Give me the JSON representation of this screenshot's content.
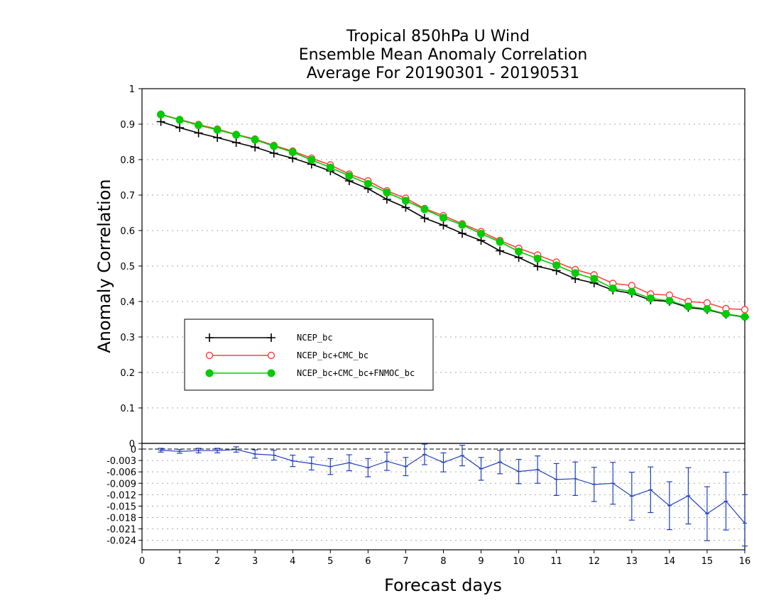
{
  "chart_data": {
    "title_lines": [
      "Tropical 850hPa U Wind",
      "Ensemble Mean Anomaly Correlation",
      "Average For 20190301 - 20190531"
    ],
    "xlabel": "Forecast days",
    "ylabel": "Anomaly Correlation",
    "main": {
      "type": "line",
      "xlim": [
        0,
        16
      ],
      "ylim": [
        0,
        1
      ],
      "x_ticks": [
        "0",
        "1",
        "2",
        "3",
        "4",
        "5",
        "6",
        "7",
        "8",
        "9",
        "10",
        "11",
        "12",
        "13",
        "14",
        "15",
        "16"
      ],
      "y_ticks": [
        "0",
        "0.1",
        "0.2",
        "0.3",
        "0.4",
        "0.5",
        "0.6",
        "0.7",
        "0.8",
        "0.9",
        "1"
      ],
      "grid": "dotted horizontal",
      "x": [
        0.5,
        1,
        1.5,
        2,
        2.5,
        3,
        3.5,
        4,
        4.5,
        5,
        5.5,
        6,
        6.5,
        7,
        7.5,
        8,
        8.5,
        9,
        9.5,
        10,
        10.5,
        11,
        11.5,
        12,
        12.5,
        13,
        13.5,
        14,
        14.5,
        15,
        15.5,
        16
      ],
      "series": [
        {
          "name": "NCEP_bc",
          "color": "#000000",
          "marker": "plus",
          "values": [
            0.907,
            0.89,
            0.875,
            0.862,
            0.848,
            0.835,
            0.818,
            0.804,
            0.787,
            0.768,
            0.74,
            0.718,
            0.688,
            0.665,
            0.635,
            0.615,
            0.592,
            0.572,
            0.543,
            0.524,
            0.499,
            0.487,
            0.464,
            0.452,
            0.432,
            0.423,
            0.404,
            0.4,
            0.383,
            0.377,
            0.364,
            0.356
          ]
        },
        {
          "name": "NCEP_bc+CMC_bc",
          "color": "#ff4040",
          "marker": "open-circle",
          "values": [
            0.928,
            0.913,
            0.899,
            0.886,
            0.871,
            0.858,
            0.84,
            0.824,
            0.804,
            0.785,
            0.759,
            0.74,
            0.712,
            0.691,
            0.662,
            0.642,
            0.619,
            0.597,
            0.572,
            0.55,
            0.531,
            0.511,
            0.49,
            0.475,
            0.451,
            0.445,
            0.421,
            0.418,
            0.4,
            0.396,
            0.38,
            0.377
          ]
        },
        {
          "name": "NCEP_bc+CMC_bc+FNMOC_bc",
          "color": "#00cc00",
          "marker": "filled-circle",
          "values": [
            0.927,
            0.912,
            0.897,
            0.884,
            0.87,
            0.856,
            0.838,
            0.821,
            0.799,
            0.778,
            0.754,
            0.732,
            0.707,
            0.684,
            0.66,
            0.636,
            0.616,
            0.591,
            0.568,
            0.541,
            0.521,
            0.502,
            0.48,
            0.464,
            0.437,
            0.428,
            0.409,
            0.402,
            0.386,
            0.379,
            0.365,
            0.357
          ]
        }
      ],
      "legend": {
        "placement": "lower-left"
      }
    },
    "diff": {
      "type": "line-errorbar",
      "color": "#2040c0",
      "ylim": [
        -0.0265,
        0.0015
      ],
      "y_ticks": [
        "0",
        "-0.003",
        "-0.006",
        "-0.009",
        "-0.012",
        "-0.015",
        "-0.018",
        "-0.021",
        "-0.024"
      ],
      "x": [
        0.5,
        1,
        1.5,
        2,
        2.5,
        3,
        3.5,
        4,
        4.5,
        5,
        5.5,
        6,
        6.5,
        7,
        7.5,
        8,
        8.5,
        9,
        9.5,
        10,
        10.5,
        11,
        11.5,
        12,
        12.5,
        13,
        13.5,
        14,
        14.5,
        15,
        15.5,
        16
      ],
      "values": [
        -0.0003,
        -0.0006,
        -0.0004,
        -0.0004,
        -0.0001,
        -0.0013,
        -0.0016,
        -0.0031,
        -0.0038,
        -0.0046,
        -0.0036,
        -0.0049,
        -0.0032,
        -0.0046,
        -0.0014,
        -0.0035,
        -0.0017,
        -0.0052,
        -0.0034,
        -0.0059,
        -0.0054,
        -0.008,
        -0.0078,
        -0.0093,
        -0.009,
        -0.0124,
        -0.0107,
        -0.0149,
        -0.0123,
        -0.017,
        -0.0137,
        -0.0195
      ],
      "lower": [
        -0.0008,
        -0.0011,
        -0.001,
        -0.001,
        -0.0008,
        -0.0024,
        -0.0029,
        -0.0046,
        -0.0055,
        -0.0067,
        -0.0057,
        -0.0073,
        -0.0056,
        -0.007,
        -0.0041,
        -0.006,
        -0.0044,
        -0.0082,
        -0.0065,
        -0.0091,
        -0.009,
        -0.0122,
        -0.0122,
        -0.0138,
        -0.0145,
        -0.0187,
        -0.0167,
        -0.0212,
        -0.0197,
        -0.0241,
        -0.0213,
        -0.0255
      ],
      "upper": [
        0.0002,
        -0.0001,
        0.0002,
        0.0002,
        0.0006,
        -0.0002,
        -0.0003,
        -0.0016,
        -0.0021,
        -0.0025,
        -0.0015,
        -0.0025,
        -0.0008,
        -0.0022,
        0.0013,
        -0.001,
        0.001,
        -0.0022,
        -0.0003,
        -0.0027,
        -0.0018,
        -0.0038,
        -0.0034,
        -0.0048,
        -0.0035,
        -0.0061,
        -0.0047,
        -0.0086,
        -0.0049,
        -0.0099,
        -0.0061,
        -0.012
      ]
    }
  }
}
